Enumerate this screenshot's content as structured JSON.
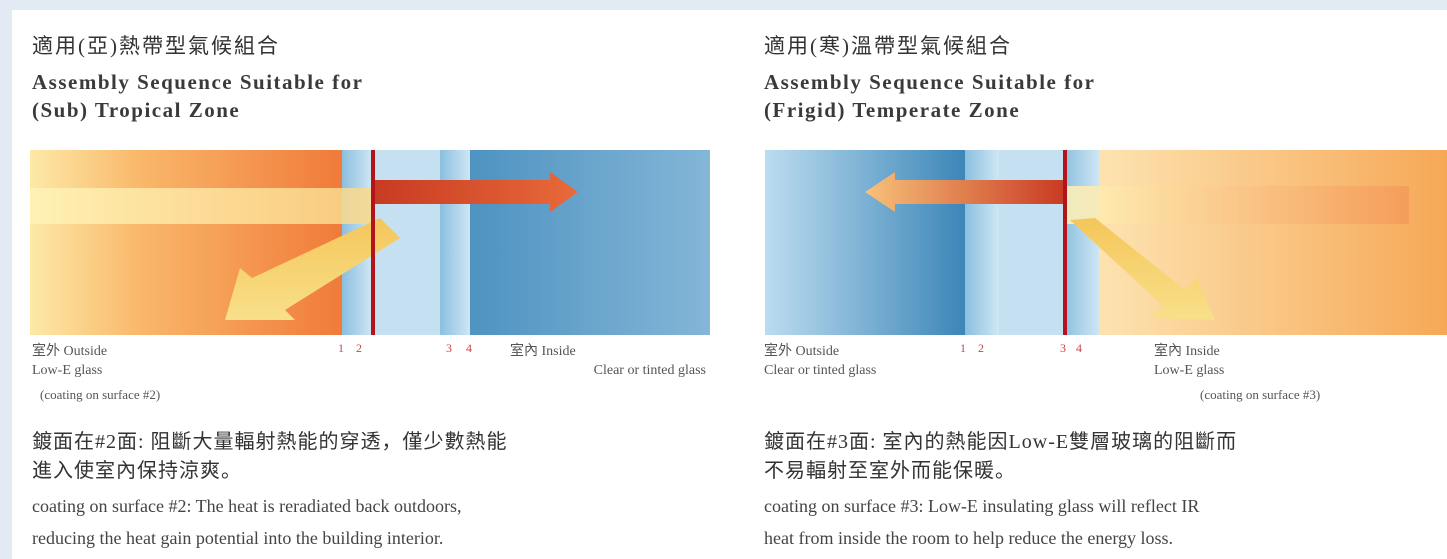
{
  "panels": [
    {
      "title_zh": "適用(亞)熱帶型氣候組合",
      "title_en": [
        "Assembly Sequence Suitable for",
        "(Sub) Tropical Zone"
      ],
      "outside": [
        "室外 Outside",
        "Low-E glass",
        "(coating on surface #2)"
      ],
      "surfaces": [
        "1",
        "2",
        "3",
        "4"
      ],
      "inside": [
        "室內 Inside",
        "Clear or tinted glass"
      ],
      "desc_zh": [
        "鍍面在#2面: 阻斷大量輻射熱能的穿透，僅少數熱能",
        "進入使室內保持涼爽。"
      ],
      "desc_en": [
        "coating on surface #2: The heat is reradiated back outdoors,",
        "reducing the heat gain potential into the building interior."
      ]
    },
    {
      "title_zh": "適用(寒)溫帶型氣候組合",
      "title_en": [
        "Assembly Sequence Suitable for",
        "(Frigid) Temperate Zone"
      ],
      "outside": [
        "室外 Outside",
        "Clear or tinted glass"
      ],
      "surfaces": [
        "1",
        "2",
        "3",
        "4"
      ],
      "inside": [
        "室內 Inside",
        "Low-E glass",
        "(coating on surface #3)"
      ],
      "desc_zh": [
        "鍍面在#3面: 室內的熱能因Low-E雙層玻璃的阻斷而",
        "不易輻射至室外而能保暖。"
      ],
      "desc_en": [
        "coating on surface #3: Low-E insulating glass will reflect IR",
        "heat from inside the room to help reduce the energy loss."
      ]
    }
  ]
}
